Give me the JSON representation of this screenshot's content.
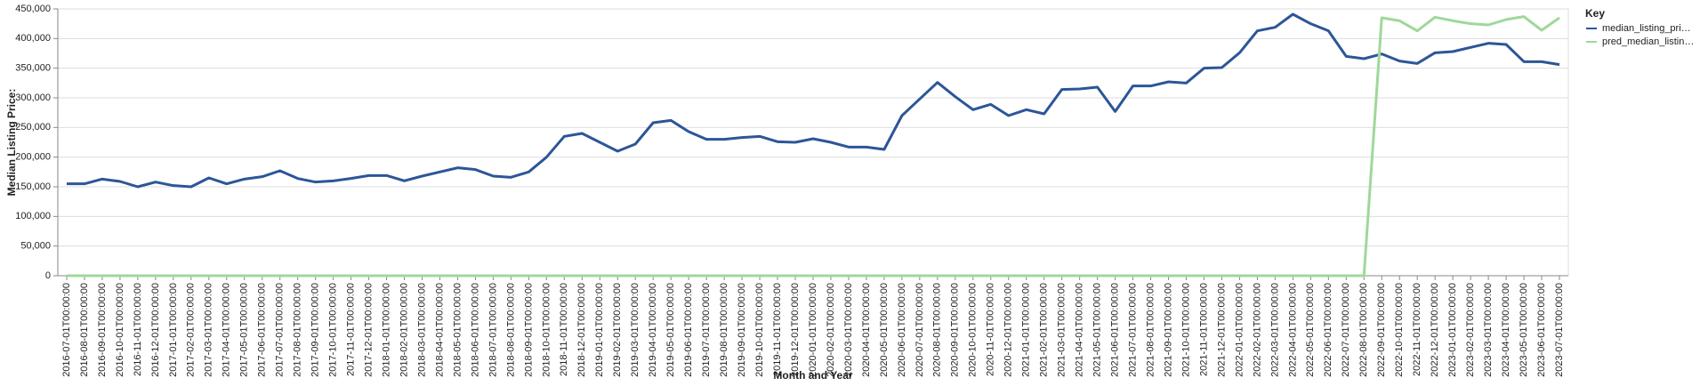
{
  "chart_data": {
    "type": "line",
    "x_label": "Month and Year",
    "y_label": "Median Listing Price:",
    "legend_title": "Key",
    "legend_position": "right",
    "grid": true,
    "categories": [
      "2016-07-01T00:00:00",
      "2016-08-01T00:00:00",
      "2016-09-01T00:00:00",
      "2016-10-01T00:00:00",
      "2016-11-01T00:00:00",
      "2016-12-01T00:00:00",
      "2017-01-01T00:00:00",
      "2017-02-01T00:00:00",
      "2017-03-01T00:00:00",
      "2017-04-01T00:00:00",
      "2017-05-01T00:00:00",
      "2017-06-01T00:00:00",
      "2017-07-01T00:00:00",
      "2017-08-01T00:00:00",
      "2017-09-01T00:00:00",
      "2017-10-01T00:00:00",
      "2017-11-01T00:00:00",
      "2017-12-01T00:00:00",
      "2018-01-01T00:00:00",
      "2018-02-01T00:00:00",
      "2018-03-01T00:00:00",
      "2018-04-01T00:00:00",
      "2018-05-01T00:00:00",
      "2018-06-01T00:00:00",
      "2018-07-01T00:00:00",
      "2018-08-01T00:00:00",
      "2018-09-01T00:00:00",
      "2018-10-01T00:00:00",
      "2018-11-01T00:00:00",
      "2018-12-01T00:00:00",
      "2019-01-01T00:00:00",
      "2019-02-01T00:00:00",
      "2019-03-01T00:00:00",
      "2019-04-01T00:00:00",
      "2019-05-01T00:00:00",
      "2019-06-01T00:00:00",
      "2019-07-01T00:00:00",
      "2019-08-01T00:00:00",
      "2019-09-01T00:00:00",
      "2019-10-01T00:00:00",
      "2019-11-01T00:00:00",
      "2019-12-01T00:00:00",
      "2020-01-01T00:00:00",
      "2020-02-01T00:00:00",
      "2020-03-01T00:00:00",
      "2020-04-01T00:00:00",
      "2020-05-01T00:00:00",
      "2020-06-01T00:00:00",
      "2020-07-01T00:00:00",
      "2020-08-01T00:00:00",
      "2020-09-01T00:00:00",
      "2020-10-01T00:00:00",
      "2020-11-01T00:00:00",
      "2020-12-01T00:00:00",
      "2021-01-01T00:00:00",
      "2021-02-01T00:00:00",
      "2021-03-01T00:00:00",
      "2021-04-01T00:00:00",
      "2021-05-01T00:00:00",
      "2021-06-01T00:00:00",
      "2021-07-01T00:00:00",
      "2021-08-01T00:00:00",
      "2021-09-01T00:00:00",
      "2021-10-01T00:00:00",
      "2021-11-01T00:00:00",
      "2021-12-01T00:00:00",
      "2022-01-01T00:00:00",
      "2022-02-01T00:00:00",
      "2022-03-01T00:00:00",
      "2022-04-01T00:00:00",
      "2022-05-01T00:00:00",
      "2022-06-01T00:00:00",
      "2022-07-01T00:00:00",
      "2022-08-01T00:00:00",
      "2022-09-01T00:00:00",
      "2022-10-01T00:00:00",
      "2022-11-01T00:00:00",
      "2022-12-01T00:00:00",
      "2023-01-01T00:00:00",
      "2023-02-01T00:00:00",
      "2023-03-01T00:00:00",
      "2023-04-01T00:00:00",
      "2023-05-01T00:00:00",
      "2023-06-01T00:00:00",
      "2023-07-01T00:00:00"
    ],
    "series": [
      {
        "name": "median_listing_pri…",
        "color": "#2c5697",
        "values": [
          155000,
          155000,
          163000,
          159000,
          150000,
          158000,
          152000,
          150000,
          165000,
          155000,
          163000,
          167000,
          177000,
          164000,
          158000,
          160000,
          164000,
          169000,
          169000,
          160000,
          168000,
          175000,
          182000,
          179000,
          168000,
          166000,
          175000,
          200000,
          235000,
          240000,
          225000,
          210000,
          222000,
          258000,
          262000,
          243000,
          230000,
          230000,
          233000,
          235000,
          226000,
          225000,
          231000,
          225000,
          217000,
          217000,
          213000,
          270000,
          298000,
          326000,
          302000,
          280000,
          289000,
          270000,
          280000,
          273000,
          314000,
          315000,
          318000,
          277000,
          320000,
          320000,
          327000,
          325000,
          350000,
          351000,
          376000,
          413000,
          419000,
          441000,
          425000,
          413000,
          370000,
          366000,
          374000,
          362000,
          358000,
          376000,
          378000,
          385000,
          392000,
          390000,
          361000,
          361000,
          356000
        ]
      },
      {
        "name": "pred_median_listin…",
        "color": "#9fd89a",
        "values": [
          0,
          0,
          0,
          0,
          0,
          0,
          0,
          0,
          0,
          0,
          0,
          0,
          0,
          0,
          0,
          0,
          0,
          0,
          0,
          0,
          0,
          0,
          0,
          0,
          0,
          0,
          0,
          0,
          0,
          0,
          0,
          0,
          0,
          0,
          0,
          0,
          0,
          0,
          0,
          0,
          0,
          0,
          0,
          0,
          0,
          0,
          0,
          0,
          0,
          0,
          0,
          0,
          0,
          0,
          0,
          0,
          0,
          0,
          0,
          0,
          0,
          0,
          0,
          0,
          0,
          0,
          0,
          0,
          0,
          0,
          0,
          0,
          0,
          0,
          435000,
          430000,
          413000,
          436000,
          430000,
          425000,
          423000,
          432000,
          437000,
          414000,
          435000
        ]
      }
    ],
    "ylim": [
      0,
      450000
    ],
    "yticks": [
      0,
      {
        "value": 50000,
        "label": "50,000"
      },
      {
        "value": 100000,
        "label": "100,000"
      },
      {
        "value": 150000,
        "label": "150,000"
      },
      {
        "value": 200000,
        "label": "200,000"
      },
      {
        "value": 250000,
        "label": "250,000"
      },
      {
        "value": 300000,
        "label": "300,000"
      },
      {
        "value": 350000,
        "label": "350,000"
      },
      {
        "value": 400000,
        "label": "400,000"
      },
      {
        "value": 450000,
        "label": "450,000"
      }
    ]
  }
}
